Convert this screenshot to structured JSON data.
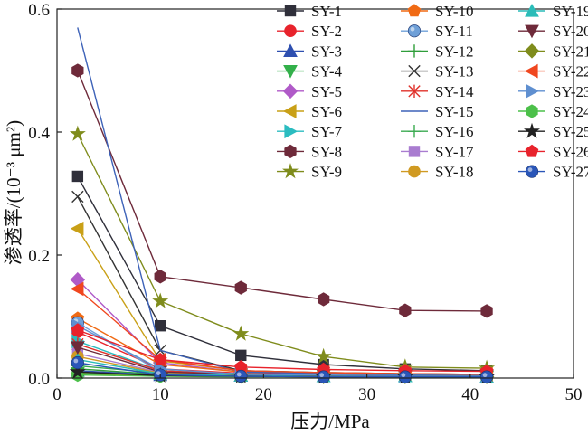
{
  "chart_data": {
    "type": "line",
    "xlabel": "压力/MPa",
    "ylabel": "渗透率/(10⁻³ μm²)",
    "xlim": [
      0,
      50
    ],
    "ylim": [
      0,
      0.6
    ],
    "xticks": [
      "0",
      "10",
      "20",
      "30",
      "40",
      "50"
    ],
    "yticks": [
      "0.0",
      "0.2",
      "0.4",
      "0.6"
    ],
    "grid": false,
    "legend_position": "top-right",
    "x": [
      2,
      10,
      17.8,
      25.8,
      33.7,
      41.6
    ],
    "series": [
      {
        "name": "SY-1",
        "color": "#2f2f3a",
        "marker": "square",
        "values": [
          0.328,
          0.085,
          0.037,
          0.022,
          0.015,
          0.012
        ]
      },
      {
        "name": "SY-2",
        "color": "#e8232c",
        "marker": "circle",
        "values": [
          0.075,
          0.015,
          0.008,
          0.006,
          0.005,
          0.004
        ]
      },
      {
        "name": "SY-3",
        "color": "#2e4fb0",
        "marker": "triangle",
        "values": [
          0.012,
          0.005,
          0.004,
          0.003,
          0.003,
          0.002
        ]
      },
      {
        "name": "SY-4",
        "color": "#33b04a",
        "marker": "tridown",
        "values": [
          0.008,
          0.004,
          0.003,
          0.003,
          0.002,
          0.002
        ]
      },
      {
        "name": "SY-5",
        "color": "#b05ac8",
        "marker": "diamond",
        "values": [
          0.16,
          0.025,
          0.01,
          0.008,
          0.006,
          0.005
        ]
      },
      {
        "name": "SY-6",
        "color": "#c9a017",
        "marker": "triLeft",
        "values": [
          0.243,
          0.028,
          0.012,
          0.009,
          0.007,
          0.006
        ]
      },
      {
        "name": "SY-7",
        "color": "#2bbcc0",
        "marker": "triRight",
        "values": [
          0.06,
          0.012,
          0.007,
          0.005,
          0.004,
          0.004
        ]
      },
      {
        "name": "SY-8",
        "color": "#6e2a3a",
        "marker": "hexagon",
        "values": [
          0.5,
          0.165,
          0.147,
          0.128,
          0.11,
          0.109
        ]
      },
      {
        "name": "SY-9",
        "color": "#7f8c1c",
        "marker": "star",
        "values": [
          0.397,
          0.125,
          0.072,
          0.035,
          0.018,
          0.016
        ]
      },
      {
        "name": "SY-10",
        "color": "#f06a14",
        "marker": "pentagon",
        "values": [
          0.097,
          0.022,
          0.01,
          0.008,
          0.007,
          0.006
        ]
      },
      {
        "name": "SY-11",
        "color": "#6fa0d8",
        "marker": "ball",
        "values": [
          0.09,
          0.01,
          0.004,
          0.003,
          0.003,
          0.002
        ]
      },
      {
        "name": "SY-12",
        "color": "#2f9e3a",
        "marker": "plus",
        "values": [
          0.015,
          0.006,
          0.004,
          0.003,
          0.003,
          0.002
        ]
      },
      {
        "name": "SY-13",
        "color": "#333333",
        "marker": "x",
        "values": [
          0.295,
          0.045,
          0.012,
          0.009,
          0.007,
          0.006
        ]
      },
      {
        "name": "SY-14",
        "color": "#e0312a",
        "marker": "asterisk",
        "values": [
          0.055,
          0.012,
          0.006,
          0.005,
          0.004,
          0.004
        ]
      },
      {
        "name": "SY-15",
        "color": "#3d62b8",
        "marker": "none",
        "values": [
          0.57,
          0.045,
          0.01,
          0.007,
          0.006,
          0.005
        ]
      },
      {
        "name": "SY-16",
        "color": "#3aaa50",
        "marker": "plus",
        "values": [
          0.02,
          0.008,
          0.005,
          0.004,
          0.003,
          0.003
        ]
      },
      {
        "name": "SY-17",
        "color": "#a97cd0",
        "marker": "square",
        "values": [
          0.04,
          0.009,
          0.005,
          0.004,
          0.003,
          0.003
        ]
      },
      {
        "name": "SY-18",
        "color": "#d09a22",
        "marker": "circle",
        "values": [
          0.035,
          0.008,
          0.005,
          0.004,
          0.003,
          0.003
        ]
      },
      {
        "name": "SY-19",
        "color": "#2bbcb8",
        "marker": "triangle",
        "values": [
          0.03,
          0.007,
          0.004,
          0.003,
          0.003,
          0.002
        ]
      },
      {
        "name": "SY-20",
        "color": "#6e2a3a",
        "marker": "tridown",
        "values": [
          0.05,
          0.01,
          0.006,
          0.005,
          0.004,
          0.004
        ]
      },
      {
        "name": "SY-21",
        "color": "#7f8c1c",
        "marker": "diamond",
        "values": [
          0.007,
          0.004,
          0.003,
          0.002,
          0.002,
          0.002
        ]
      },
      {
        "name": "SY-22",
        "color": "#f0471f",
        "marker": "triLeft",
        "values": [
          0.145,
          0.03,
          0.012,
          0.009,
          0.007,
          0.006
        ]
      },
      {
        "name": "SY-23",
        "color": "#5f8fd0",
        "marker": "triRight",
        "values": [
          0.085,
          0.015,
          0.006,
          0.005,
          0.004,
          0.004
        ]
      },
      {
        "name": "SY-24",
        "color": "#4cc04a",
        "marker": "hexagon",
        "values": [
          0.005,
          0.003,
          0.002,
          0.002,
          0.002,
          0.002
        ]
      },
      {
        "name": "SY-25",
        "color": "#222222",
        "marker": "star",
        "values": [
          0.01,
          0.004,
          0.003,
          0.002,
          0.002,
          0.002
        ]
      },
      {
        "name": "SY-26",
        "color": "#e8232c",
        "marker": "pentagon",
        "values": [
          0.078,
          0.03,
          0.018,
          0.014,
          0.012,
          0.011
        ]
      },
      {
        "name": "SY-27",
        "color": "#2a56b8",
        "marker": "ball",
        "values": [
          0.025,
          0.005,
          0.003,
          0.002,
          0.002,
          0.002
        ]
      }
    ]
  }
}
